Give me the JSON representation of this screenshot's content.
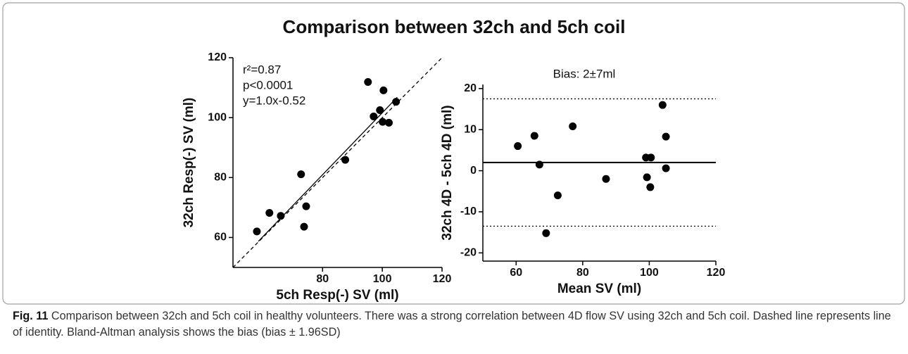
{
  "figure_title": "Comparison between 32ch and 5ch coil",
  "chart_data": [
    {
      "type": "scatter",
      "x_label": "5ch Resp(-) SV (ml)",
      "y_label": "32ch Resp(-) SV (ml)",
      "xlim": [
        50,
        120
      ],
      "ylim": [
        50,
        120
      ],
      "xticks": [
        80,
        100,
        120
      ],
      "yticks": [
        60,
        80,
        100,
        120
      ],
      "x": [
        58.0,
        62.2,
        66.0,
        72.8,
        73.8,
        74.5,
        87.6,
        95.2,
        97.1,
        99.2,
        100.4,
        100.1,
        102.2,
        104.6
      ],
      "series": [
        {
          "color": "#000000",
          "values": [
            62.0,
            68.2,
            67.2,
            81.1,
            63.6,
            70.4,
            85.9,
            111.9,
            100.4,
            102.5,
            109.1,
            98.6,
            98.3,
            105.3
          ]
        }
      ],
      "lines": [
        {
          "x": [
            58.5,
            105
          ],
          "y": [
            58.7,
            106.8
          ],
          "style": "solid"
        },
        {
          "x": [
            50,
            120
          ],
          "y": [
            50,
            120
          ],
          "style": "dashed"
        }
      ],
      "annotations": [
        "r²=0.87",
        "p<0.0001",
        "y=1.0x-0.52"
      ]
    },
    {
      "type": "scatter",
      "x_label": "Mean SV (ml)",
      "y_label": "32ch 4D - 5ch 4D (ml)",
      "xlim": [
        50,
        120
      ],
      "ylim": [
        -22,
        21
      ],
      "xticks": [
        60,
        80,
        100,
        120
      ],
      "yticks": [
        -20,
        -10,
        0,
        10,
        20
      ],
      "x": [
        60.5,
        65.5,
        67.0,
        69.0,
        72.5,
        77.0,
        87.0,
        99.0,
        100.5,
        99.3,
        100.3,
        104.0,
        105.0,
        105.0
      ],
      "series": [
        {
          "color": "#000000",
          "values": [
            6.0,
            8.5,
            1.5,
            -15.2,
            -6.0,
            10.8,
            -2.0,
            3.2,
            3.2,
            -1.6,
            -4.0,
            16.0,
            8.3,
            0.6
          ]
        }
      ],
      "hlines": [
        {
          "value": 2,
          "style": "solid"
        },
        {
          "value": 17.5,
          "style": "dotted"
        },
        {
          "value": -13.5,
          "style": "dotted"
        }
      ],
      "annotations": [
        "Bias: 2±7ml"
      ]
    }
  ],
  "caption": {
    "label": "Fig. 11",
    "text": "Comparison between 32ch and 5ch coil in healthy volunteers. There was a strong correlation between 4D flow SV using 32ch and 5ch coil. Dashed line represents line of identity. Bland-Altman analysis shows the bias (bias ± 1.96SD)"
  }
}
